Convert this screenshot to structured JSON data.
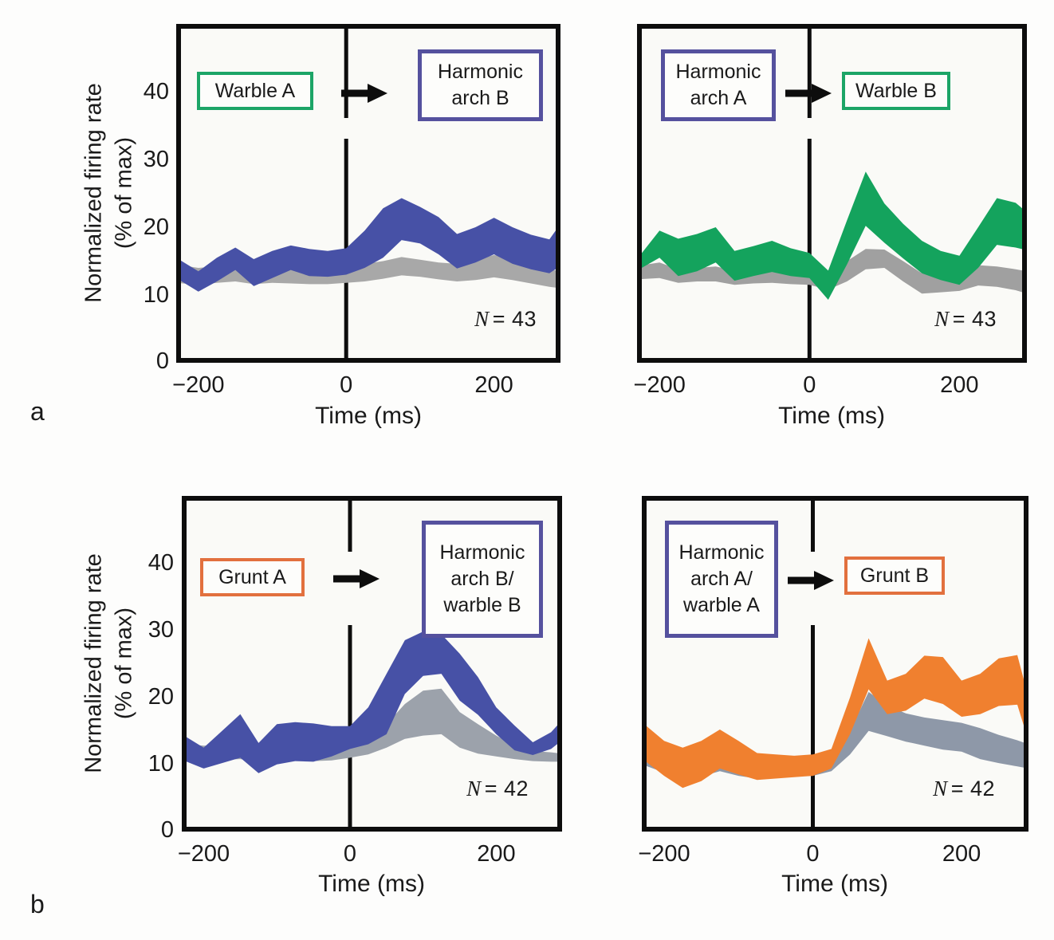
{
  "figure": {
    "panel_letters": {
      "a": "a",
      "b": "b"
    },
    "axis": {
      "y_label_line1": "Normalized firing rate",
      "y_label_line2": "(% of max)",
      "x_label": "Time (ms)",
      "y_ticks": [
        "40",
        "30",
        "20",
        "10",
        "0"
      ],
      "x_ticks": [
        "−200",
        "0",
        "200"
      ]
    },
    "colors": {
      "blue_band": "#4751A6",
      "green_band": "#14A35D",
      "orange_band": "#F0802F",
      "gray_band": "#9EA3AA",
      "box_green": "#1CA567",
      "box_purple": "#55519E",
      "box_orange": "#E2703E",
      "frame": "#0d0d0d"
    }
  },
  "chart_data": [
    {
      "id": "panel-a-left",
      "type": "area",
      "xlabel": "Time (ms)",
      "ylabel": "Normalized firing rate (% of max)",
      "xlim": [
        -230,
        290
      ],
      "ylim": [
        0,
        50
      ],
      "xticks": [
        -200,
        0,
        200
      ],
      "yticks": [
        0,
        10,
        20,
        30,
        40
      ],
      "cue": {
        "lines": [
          "Warble A"
        ],
        "border_color": "#1CA567"
      },
      "target": {
        "lines": [
          "Harmonic",
          "arch B"
        ],
        "border_color": "#55519E"
      },
      "n": {
        "sym": "N",
        "rest": "= 43"
      },
      "series": [
        {
          "name": "control-gray-band",
          "color": "#A8A8A8",
          "x": [
            -230,
            -200,
            -175,
            -150,
            -125,
            -100,
            -75,
            -50,
            -25,
            0,
            25,
            50,
            75,
            100,
            125,
            150,
            175,
            200,
            225,
            250,
            275,
            290
          ],
          "upper": [
            14.5,
            14.0,
            14.2,
            14.0,
            13.8,
            14.0,
            13.8,
            13.8,
            13.7,
            14.0,
            14.6,
            15.0,
            15.6,
            15.2,
            14.8,
            14.6,
            15.2,
            15.9,
            15.4,
            14.5,
            13.8,
            13.5
          ],
          "lower": [
            11.8,
            11.5,
            11.8,
            12.0,
            11.6,
            11.8,
            11.7,
            11.6,
            11.6,
            11.8,
            12.0,
            12.4,
            12.9,
            12.7,
            12.3,
            12.0,
            12.2,
            12.6,
            12.2,
            11.7,
            11.2,
            11.0
          ]
        },
        {
          "name": "transition-blue-band",
          "color": "#4751A6",
          "x": [
            -230,
            -200,
            -175,
            -150,
            -125,
            -100,
            -75,
            -50,
            -25,
            0,
            25,
            50,
            75,
            100,
            125,
            150,
            175,
            200,
            225,
            250,
            275,
            290
          ],
          "upper": [
            15.5,
            13.5,
            15.5,
            17.0,
            15.3,
            16.5,
            17.3,
            16.8,
            16.5,
            16.9,
            19.5,
            22.8,
            24.3,
            23.0,
            21.5,
            19.0,
            20.0,
            21.4,
            20.0,
            18.9,
            18.2,
            20.5
          ],
          "lower": [
            12.5,
            10.5,
            12.0,
            13.7,
            11.3,
            12.5,
            13.7,
            12.8,
            12.7,
            13.0,
            14.0,
            15.5,
            18.1,
            17.6,
            16.0,
            13.9,
            14.8,
            16.0,
            14.6,
            13.8,
            13.2,
            14.3
          ]
        }
      ]
    },
    {
      "id": "panel-a-right",
      "type": "area",
      "xlabel": "Time (ms)",
      "xlim": [
        -230,
        290
      ],
      "ylim": [
        0,
        50
      ],
      "xticks": [
        -200,
        0,
        200
      ],
      "yticks": [
        0,
        10,
        20,
        30,
        40
      ],
      "cue": {
        "lines": [
          "Harmonic",
          "arch A"
        ],
        "border_color": "#55519E"
      },
      "target": {
        "lines": [
          "Warble B"
        ],
        "border_color": "#1CA567"
      },
      "n": {
        "sym": "N",
        "rest": "= 43"
      },
      "series": [
        {
          "name": "control-gray-band",
          "color": "#A0A0A0",
          "x": [
            -230,
            -200,
            -175,
            -150,
            -125,
            -100,
            -75,
            -50,
            -25,
            0,
            25,
            50,
            75,
            100,
            125,
            150,
            175,
            200,
            225,
            250,
            275,
            290
          ],
          "upper": [
            14.3,
            14.8,
            13.8,
            14.0,
            14.2,
            13.6,
            13.8,
            14.0,
            13.8,
            13.8,
            13.4,
            15.0,
            16.8,
            16.7,
            15.0,
            13.2,
            13.5,
            13.8,
            14.4,
            14.2,
            13.8,
            13.5
          ],
          "lower": [
            12.3,
            12.5,
            11.8,
            12.0,
            12.0,
            11.5,
            11.7,
            11.8,
            11.6,
            11.5,
            10.8,
            12.0,
            13.8,
            14.0,
            12.0,
            10.2,
            10.4,
            10.6,
            11.4,
            11.2,
            10.7,
            10.2
          ]
        },
        {
          "name": "transition-green-band",
          "color": "#14A35D",
          "x": [
            -230,
            -200,
            -175,
            -150,
            -125,
            -100,
            -75,
            -50,
            -25,
            0,
            25,
            50,
            75,
            100,
            125,
            150,
            175,
            200,
            225,
            250,
            275,
            290
          ],
          "upper": [
            15.3,
            19.5,
            18.3,
            19.0,
            20.0,
            16.5,
            17.2,
            18.0,
            16.9,
            16.2,
            13.6,
            21.0,
            28.2,
            23.5,
            20.5,
            18.0,
            16.5,
            15.8,
            20.0,
            24.3,
            23.6,
            22.2
          ],
          "lower": [
            13.6,
            15.5,
            12.8,
            13.5,
            14.8,
            12.1,
            12.8,
            13.4,
            12.8,
            12.5,
            9.3,
            14.5,
            20.2,
            17.7,
            15.4,
            13.2,
            12.2,
            11.5,
            14.0,
            17.4,
            17.0,
            16.6
          ]
        }
      ]
    },
    {
      "id": "panel-b-left",
      "type": "area",
      "xlabel": "Time (ms)",
      "ylabel": "Normalized firing rate (% of max)",
      "xlim": [
        -230,
        290
      ],
      "ylim": [
        0,
        50
      ],
      "xticks": [
        -200,
        0,
        200
      ],
      "yticks": [
        0,
        10,
        20,
        30,
        40
      ],
      "cue": {
        "lines": [
          "Grunt A"
        ],
        "border_color": "#E2703E"
      },
      "target": {
        "lines": [
          "Harmonic",
          "arch B/",
          "warble B"
        ],
        "border_color": "#55519E"
      },
      "n": {
        "sym": "N",
        "rest": "= 42"
      },
      "series": [
        {
          "name": "control-gray-band",
          "color": "#9CA2AB",
          "x": [
            -230,
            -200,
            -175,
            -150,
            -125,
            -100,
            -75,
            -50,
            -25,
            0,
            25,
            50,
            75,
            100,
            125,
            150,
            175,
            200,
            225,
            250,
            275,
            290
          ],
          "upper": [
            13.0,
            12.8,
            12.9,
            13.0,
            12.6,
            12.8,
            12.9,
            12.8,
            12.7,
            13.0,
            14.0,
            16.0,
            19.0,
            21.0,
            21.3,
            17.8,
            16.0,
            14.3,
            12.8,
            12.0,
            11.8,
            11.6
          ],
          "lower": [
            10.8,
            10.6,
            10.7,
            10.8,
            10.4,
            10.6,
            10.7,
            10.5,
            10.6,
            11.0,
            11.5,
            12.5,
            13.8,
            14.3,
            14.5,
            12.5,
            11.6,
            11.2,
            10.8,
            10.5,
            10.4,
            10.4
          ]
        },
        {
          "name": "transition-blue-band",
          "color": "#4751A6",
          "x": [
            -230,
            -200,
            -175,
            -150,
            -125,
            -100,
            -75,
            -50,
            -25,
            0,
            25,
            50,
            75,
            100,
            125,
            150,
            175,
            200,
            225,
            250,
            275,
            290
          ],
          "upper": [
            14.5,
            12.5,
            15.0,
            17.5,
            13.2,
            16.0,
            16.3,
            16.1,
            15.7,
            15.7,
            18.5,
            23.5,
            28.5,
            29.8,
            29.4,
            26.5,
            23.0,
            18.5,
            15.8,
            13.3,
            14.8,
            16.6
          ],
          "lower": [
            10.7,
            9.4,
            10.2,
            11.0,
            8.7,
            10.0,
            10.5,
            10.4,
            11.2,
            12.3,
            13.0,
            14.5,
            20.5,
            23.2,
            23.5,
            19.5,
            17.4,
            14.5,
            12.1,
            11.4,
            12.3,
            13.6
          ]
        }
      ]
    },
    {
      "id": "panel-b-right",
      "type": "area",
      "xlabel": "Time (ms)",
      "xlim": [
        -230,
        290
      ],
      "ylim": [
        0,
        50
      ],
      "xticks": [
        -200,
        0,
        200
      ],
      "yticks": [
        0,
        10,
        20,
        30,
        40
      ],
      "cue": {
        "lines": [
          "Harmonic",
          "arch A/",
          "warble A"
        ],
        "border_color": "#55519E"
      },
      "target": {
        "lines": [
          "Grunt B"
        ],
        "border_color": "#E2703E"
      },
      "n": {
        "sym": "N",
        "rest": "= 42"
      },
      "series": [
        {
          "name": "control-gray-band",
          "color": "#8E98A8",
          "x": [
            -230,
            -200,
            -175,
            -150,
            -125,
            -100,
            -75,
            -50,
            -25,
            0,
            25,
            50,
            75,
            100,
            125,
            150,
            175,
            200,
            225,
            250,
            275,
            290
          ],
          "upper": [
            12.5,
            11.5,
            10.5,
            11.0,
            11.8,
            11.0,
            10.5,
            10.8,
            10.8,
            11.0,
            11.5,
            15.0,
            20.8,
            18.8,
            17.6,
            17.0,
            16.6,
            16.2,
            15.4,
            14.4,
            13.6,
            13.0
          ],
          "lower": [
            10.0,
            8.8,
            7.5,
            8.2,
            9.0,
            8.3,
            7.9,
            8.2,
            8.3,
            8.3,
            9.0,
            11.5,
            15.0,
            14.2,
            13.4,
            12.8,
            12.2,
            11.9,
            10.8,
            10.2,
            9.7,
            9.4
          ]
        },
        {
          "name": "transition-orange-band",
          "color": "#F0802F",
          "x": [
            -230,
            -200,
            -175,
            -150,
            -125,
            -100,
            -75,
            -50,
            -25,
            0,
            25,
            50,
            75,
            100,
            125,
            150,
            175,
            200,
            225,
            250,
            275,
            290
          ],
          "upper": [
            16.3,
            13.5,
            12.5,
            13.5,
            15.2,
            13.5,
            11.7,
            11.5,
            11.3,
            11.5,
            12.3,
            20.0,
            28.8,
            22.5,
            23.5,
            26.2,
            26.0,
            22.5,
            23.5,
            25.8,
            26.3,
            20.0
          ],
          "lower": [
            10.9,
            8.3,
            6.5,
            7.5,
            9.4,
            8.5,
            7.7,
            7.9,
            8.1,
            8.3,
            9.4,
            14.5,
            21.2,
            17.5,
            18.0,
            19.8,
            19.0,
            17.1,
            17.5,
            18.7,
            18.9,
            13.5
          ]
        }
      ]
    }
  ]
}
